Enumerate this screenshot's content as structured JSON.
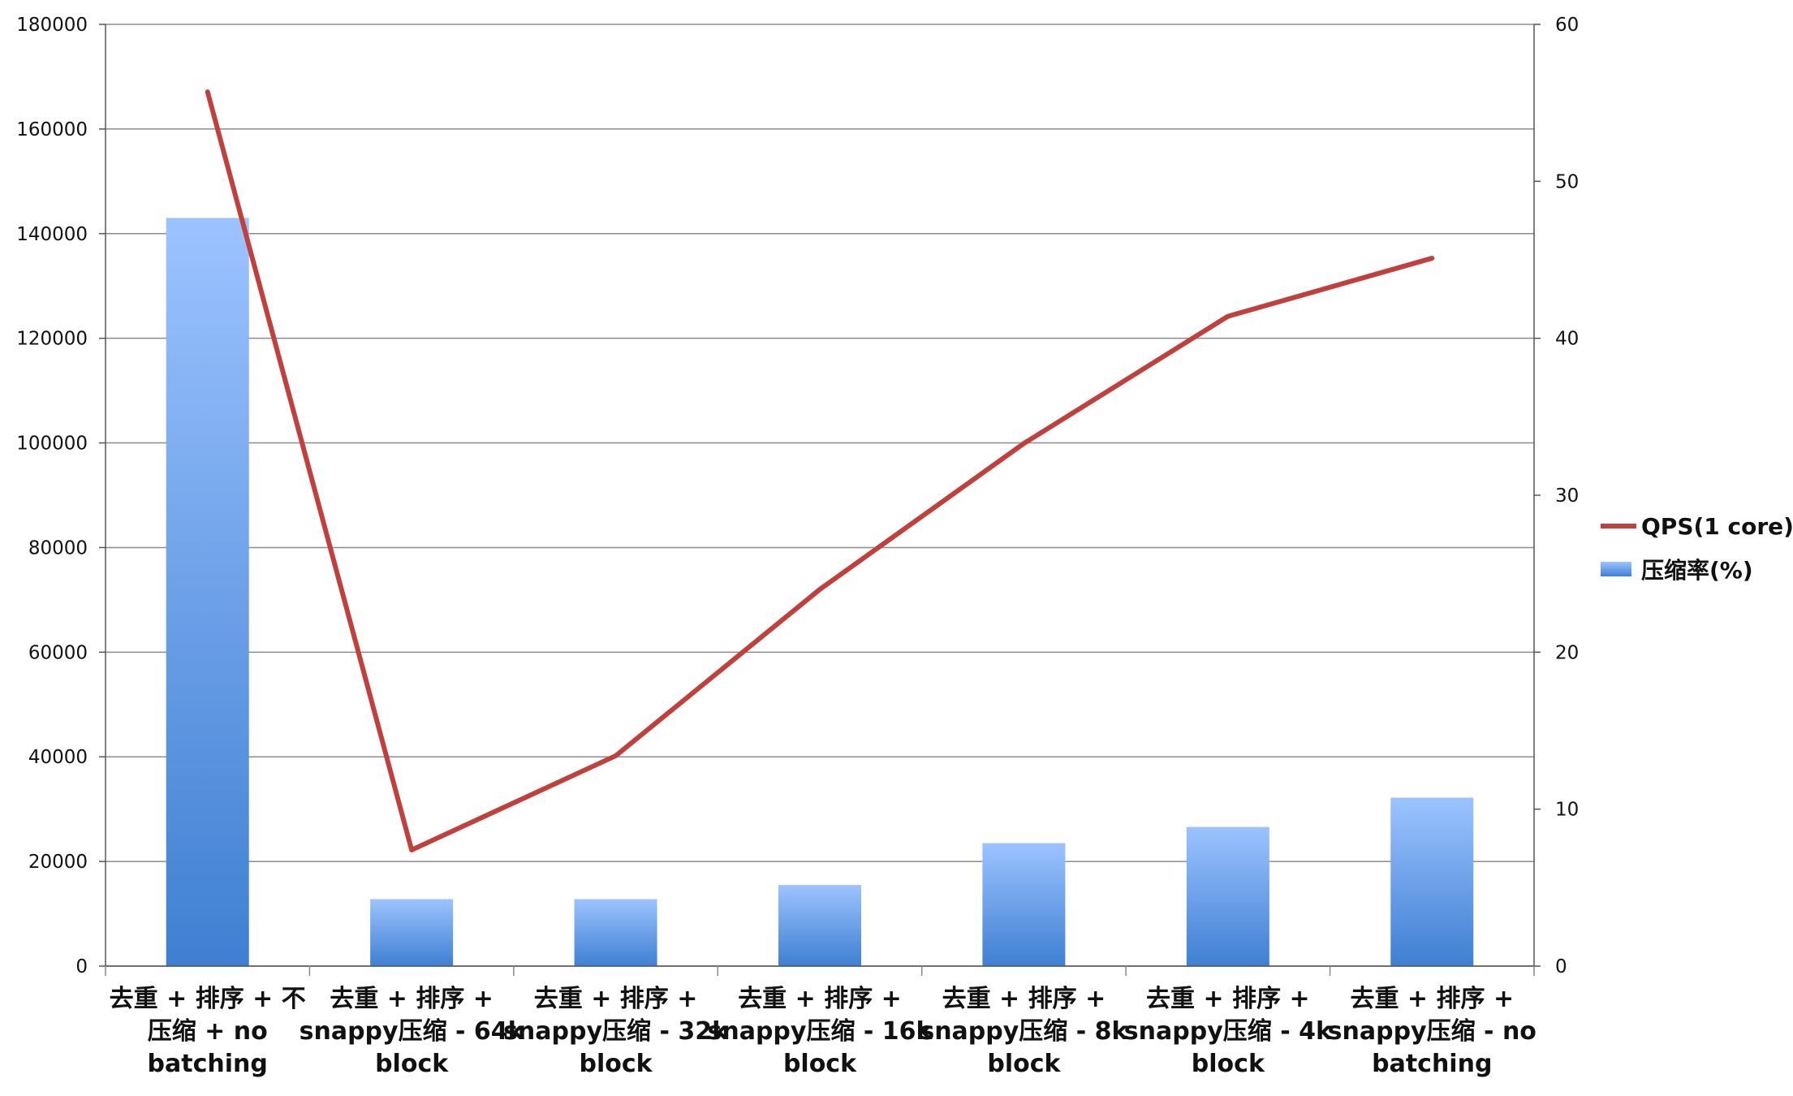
{
  "chart_data": {
    "type": "bar",
    "categories": [
      [
        "去重  + 排序  + 不",
        "压缩  + no",
        "batching"
      ],
      [
        "去重  + 排序  +",
        "snappy压缩  - 64k",
        "block"
      ],
      [
        "去重  + 排序  +",
        "snappy压缩  - 32k",
        "block"
      ],
      [
        "去重  + 排序  +",
        "snappy压缩  - 16k",
        "block"
      ],
      [
        "去重  + 排序  +",
        "snappy压缩  - 8k",
        "block"
      ],
      [
        "去重  + 排序  +",
        "snappy压缩  - 4k",
        "block"
      ],
      [
        "去重  + 排序  +",
        "snappy压缩  - no",
        "batching"
      ]
    ],
    "series": [
      {
        "name": "压缩率(%)",
        "kind": "bar",
        "axis": "left",
        "color_top": "#9cc3ff",
        "color_bottom": "#3f7fd2",
        "values": [
          143000,
          12800,
          12800,
          15500,
          23500,
          26600,
          32200
        ]
      },
      {
        "name": "QPS(1 core)",
        "kind": "line",
        "axis": "right",
        "color": "#c0403d",
        "values": [
          55.7,
          7.4,
          13.4,
          24.0,
          33.3,
          41.4,
          45.1
        ]
      }
    ],
    "y_left": {
      "min": 0,
      "max": 180000,
      "ticks": [
        0,
        20000,
        40000,
        60000,
        80000,
        100000,
        120000,
        140000,
        160000,
        180000
      ]
    },
    "y_right": {
      "min": 0,
      "max": 60,
      "ticks": [
        0,
        10,
        20,
        30,
        40,
        50,
        60
      ]
    },
    "grid": true,
    "legend_position": "right",
    "title": "",
    "xlabel": "",
    "ylabel": ""
  }
}
